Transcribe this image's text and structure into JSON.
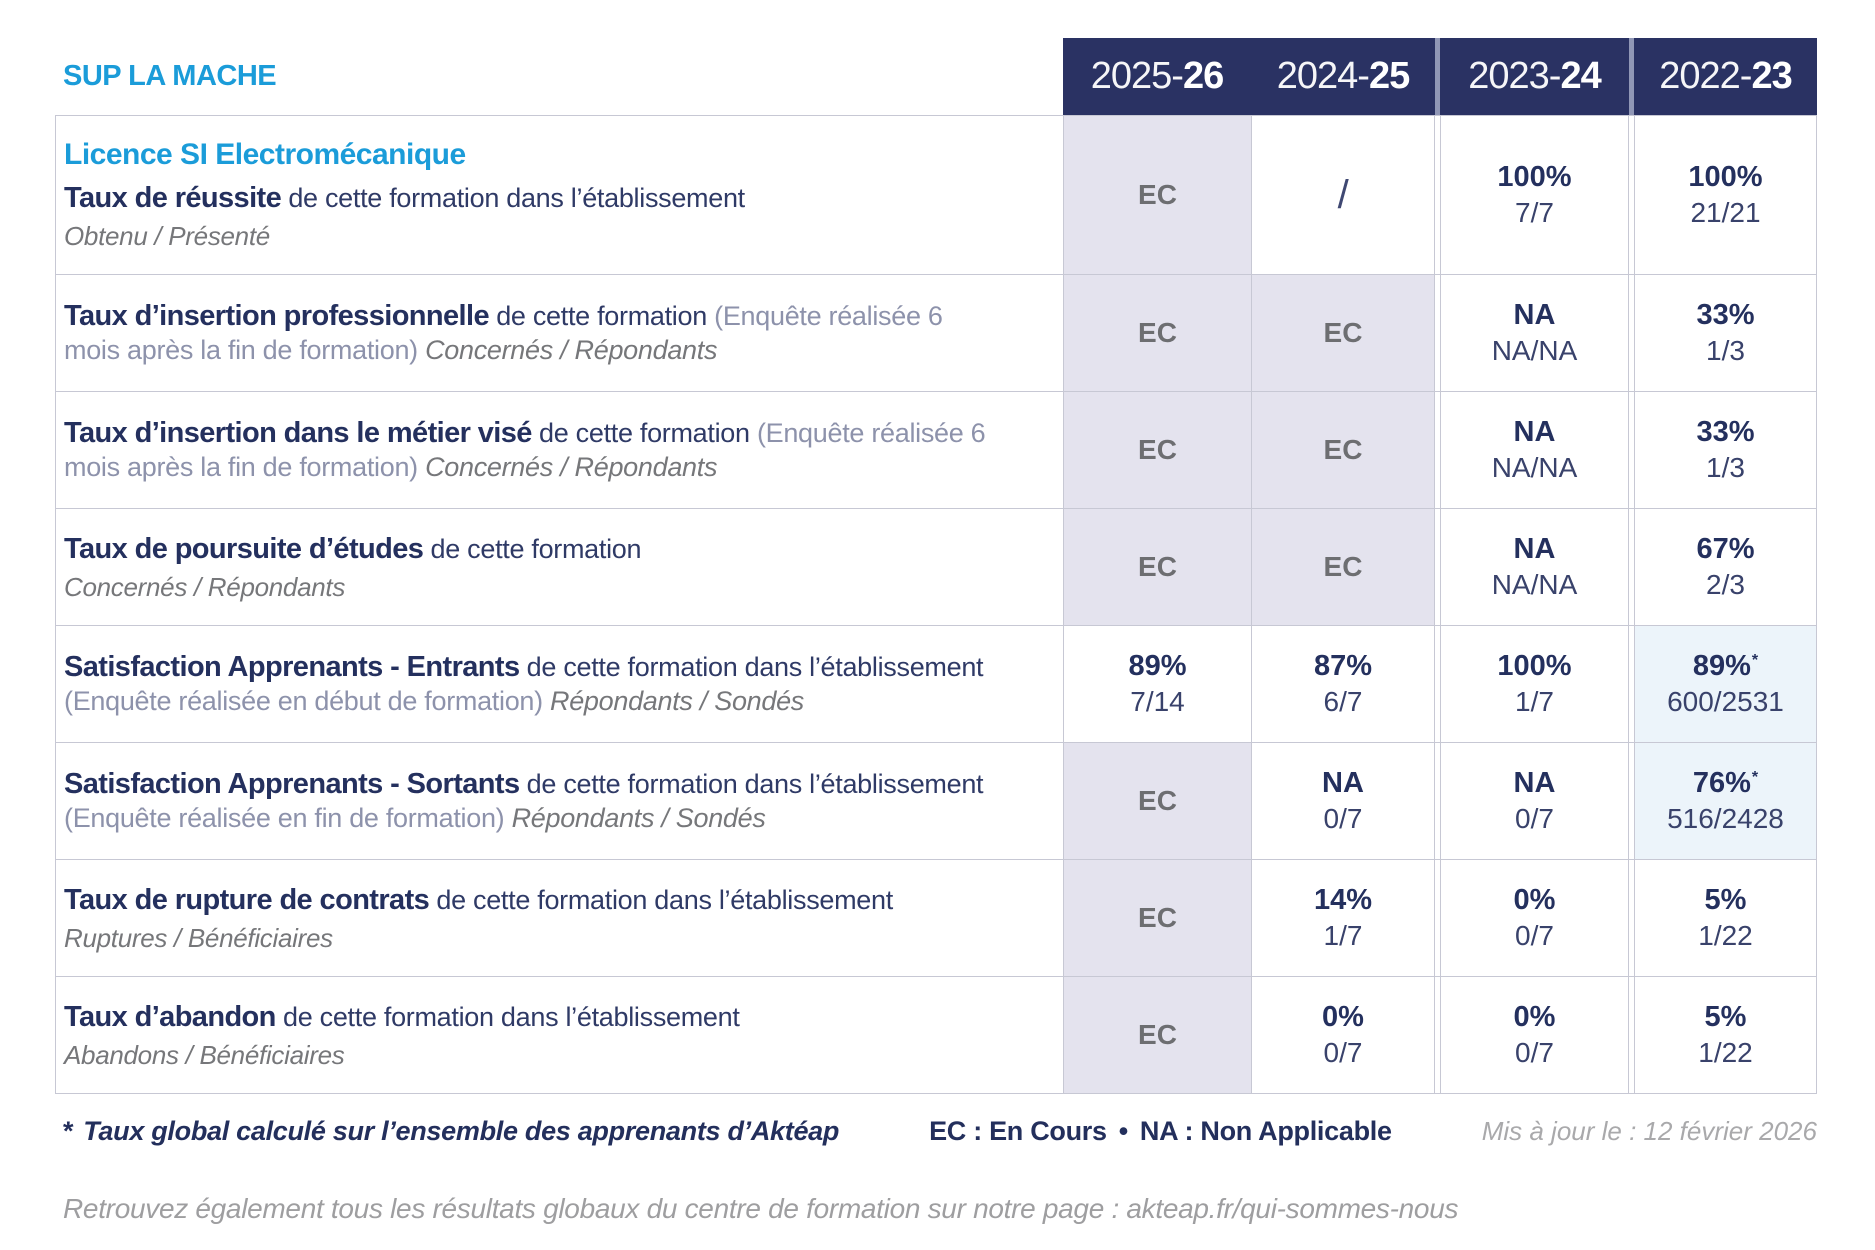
{
  "brand": "SUP LA MACHE",
  "year_columns": [
    {
      "prefix": "2025-",
      "suffix": "26"
    },
    {
      "prefix": "2024-",
      "suffix": "25"
    },
    {
      "prefix": "2023-",
      "suffix": "24"
    },
    {
      "prefix": "2022-",
      "suffix": "23"
    }
  ],
  "course_title": "Licence SI Electromécanique",
  "rows": [
    {
      "id": "taux-de-reussite",
      "show_course_title": true,
      "title": "Taux de réussite",
      "desc": "de cette formation dans l’établissement",
      "paren": "",
      "sub": "Obtenu / Présenté",
      "sub_inline": false,
      "cells": [
        {
          "type": "ec",
          "text": "EC"
        },
        {
          "type": "slash",
          "text": "/"
        },
        {
          "type": "value",
          "pct": "100%",
          "frac": "7/7"
        },
        {
          "type": "value",
          "pct": "100%",
          "frac": "21/21"
        }
      ]
    },
    {
      "id": "taux-insertion-professionnelle",
      "show_course_title": false,
      "title": "Taux d’insertion professionnelle",
      "desc": "de cette formation",
      "paren": "(Enquête réalisée 6 mois après la fin de formation)",
      "sub": "Concernés / Répondants",
      "sub_inline": true,
      "cells": [
        {
          "type": "ec",
          "text": "EC"
        },
        {
          "type": "ec",
          "text": "EC"
        },
        {
          "type": "value",
          "pct": "NA",
          "frac": "NA/NA"
        },
        {
          "type": "value",
          "pct": "33%",
          "frac": "1/3"
        }
      ]
    },
    {
      "id": "taux-insertion-metier-vise",
      "show_course_title": false,
      "title": "Taux d’insertion dans le métier visé",
      "desc": "de cette formation",
      "paren": "(Enquête réalisée 6 mois après la fin de formation)",
      "sub": "Concernés / Répondants",
      "sub_inline": true,
      "cells": [
        {
          "type": "ec",
          "text": "EC"
        },
        {
          "type": "ec",
          "text": "EC"
        },
        {
          "type": "value",
          "pct": "NA",
          "frac": "NA/NA"
        },
        {
          "type": "value",
          "pct": "33%",
          "frac": "1/3"
        }
      ]
    },
    {
      "id": "taux-poursuite-etudes",
      "show_course_title": false,
      "title": "Taux de poursuite d’études",
      "desc": "de cette formation",
      "paren": "",
      "sub": "Concernés / Répondants",
      "sub_inline": false,
      "cells": [
        {
          "type": "ec",
          "text": "EC"
        },
        {
          "type": "ec",
          "text": "EC"
        },
        {
          "type": "value",
          "pct": "NA",
          "frac": "NA/NA"
        },
        {
          "type": "value",
          "pct": "67%",
          "frac": "2/3"
        }
      ]
    },
    {
      "id": "satisfaction-apprenants-entrants",
      "show_course_title": false,
      "title": "Satisfaction Apprenants - Entrants",
      "desc": "de cette formation dans l’établissement",
      "paren": "(Enquête réalisée en début de formation)",
      "sub": "Répondants / Sondés",
      "sub_inline": true,
      "cells": [
        {
          "type": "value",
          "pct": "89%",
          "frac": "7/14"
        },
        {
          "type": "value",
          "pct": "87%",
          "frac": "6/7"
        },
        {
          "type": "value",
          "pct": "100%",
          "frac": "1/7"
        },
        {
          "type": "value",
          "pct": "89%",
          "star": true,
          "frac": "600/2531",
          "highlight": true
        }
      ]
    },
    {
      "id": "satisfaction-apprenants-sortants",
      "show_course_title": false,
      "title": "Satisfaction Apprenants - Sortants",
      "desc": "de cette formation dans l’établissement",
      "paren": "(Enquête réalisée en fin de formation)",
      "sub": "Répondants / Sondés",
      "sub_inline": true,
      "cells": [
        {
          "type": "ec",
          "text": "EC"
        },
        {
          "type": "value",
          "pct": "NA",
          "frac": "0/7"
        },
        {
          "type": "value",
          "pct": "NA",
          "frac": "0/7"
        },
        {
          "type": "value",
          "pct": "76%",
          "star": true,
          "frac": "516/2428",
          "highlight": true
        }
      ]
    },
    {
      "id": "taux-rupture-contrats",
      "show_course_title": false,
      "title": "Taux de rupture de contrats",
      "desc": "de cette formation dans l’établissement",
      "paren": "",
      "sub": "Ruptures / Bénéficiaires",
      "sub_inline": false,
      "cells": [
        {
          "type": "ec",
          "text": "EC"
        },
        {
          "type": "value",
          "pct": "14%",
          "frac": "1/7"
        },
        {
          "type": "value",
          "pct": "0%",
          "frac": "0/7"
        },
        {
          "type": "value",
          "pct": "5%",
          "frac": "1/22"
        }
      ]
    },
    {
      "id": "taux-abandon",
      "show_course_title": false,
      "title": "Taux d’abandon",
      "desc": "de cette formation dans l’établissement",
      "paren": "",
      "sub": "Abandons / Bénéficiaires",
      "sub_inline": false,
      "cells": [
        {
          "type": "ec",
          "text": "EC"
        },
        {
          "type": "value",
          "pct": "0%",
          "frac": "0/7"
        },
        {
          "type": "value",
          "pct": "0%",
          "frac": "0/7"
        },
        {
          "type": "value",
          "pct": "5%",
          "frac": "1/22"
        }
      ]
    }
  ],
  "footer": {
    "footnote_star": "*",
    "footnote": "Taux global calculé sur l’ensemble des apprenants d’Aktéap",
    "legend_ec": "EC : En Cours",
    "legend_sep": "•",
    "legend_na": "NA : Non Applicable",
    "updated": "Mis à jour le : 12 février 2026",
    "bottom_note": "Retrouvez également tous les résultats globaux du centre de formation sur notre page : akteap.fr/qui-sommes-nous"
  },
  "colors": {
    "accent_blue": "#1b9cd9",
    "header_navy": "#2a3263",
    "text_navy": "#24305e",
    "ec_gray": "#6d6e71",
    "cell_lavender": "#e4e3ee",
    "cell_highlight": "#ecf4fa",
    "border_gray": "#c7c8d4"
  }
}
